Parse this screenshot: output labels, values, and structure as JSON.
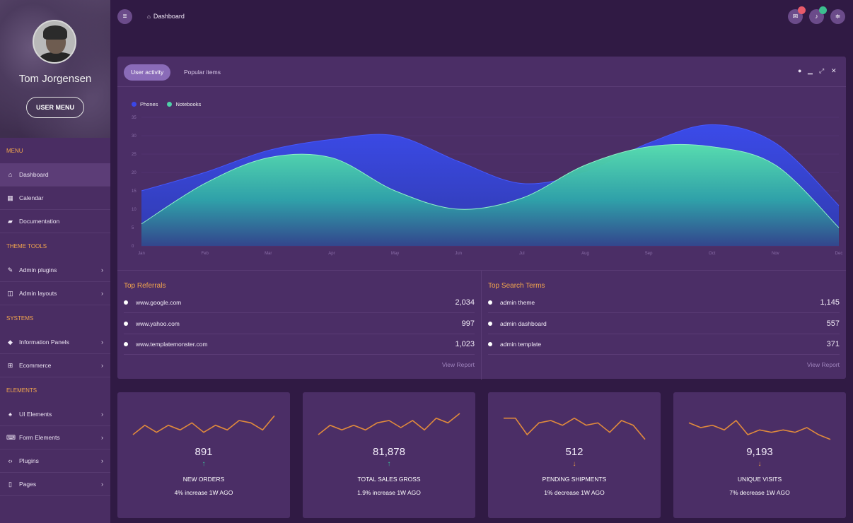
{
  "profile": {
    "name": "Tom Jorgensen",
    "button": "USER MENU"
  },
  "sidebar": {
    "sections": [
      {
        "title": "MENU",
        "items": [
          {
            "label": "Dashboard",
            "icon": "home-icon",
            "glyph": "⌂",
            "arrow": false,
            "active": true
          },
          {
            "label": "Calendar",
            "icon": "calendar-icon",
            "glyph": "▦",
            "arrow": false
          },
          {
            "label": "Documentation",
            "icon": "book-icon",
            "glyph": "▰",
            "arrow": false
          }
        ]
      },
      {
        "title": "THEME TOOLS",
        "items": [
          {
            "label": "Admin plugins",
            "icon": "pencil-icon",
            "glyph": "✎",
            "arrow": true
          },
          {
            "label": "Admin layouts",
            "icon": "columns-icon",
            "glyph": "◫",
            "arrow": true
          }
        ]
      },
      {
        "title": "SYSTEMS",
        "items": [
          {
            "label": "Information Panels",
            "icon": "diamond-icon",
            "glyph": "◆",
            "arrow": true
          },
          {
            "label": "Ecommerce",
            "icon": "cart-icon",
            "glyph": "⊞",
            "arrow": true
          }
        ]
      },
      {
        "title": "ELEMENTS",
        "items": [
          {
            "label": "UI Elements",
            "icon": "bell-icon",
            "glyph": "♠",
            "arrow": true
          },
          {
            "label": "Form Elements",
            "icon": "keyboard-icon",
            "glyph": "⌨",
            "arrow": true
          },
          {
            "label": "Plugins",
            "icon": "code-icon",
            "glyph": "‹›",
            "arrow": true
          },
          {
            "label": "Pages",
            "icon": "file-icon",
            "glyph": "▯",
            "arrow": true
          }
        ]
      }
    ]
  },
  "topbar": {
    "breadcrumb": "Dashboard"
  },
  "panel": {
    "tabs": [
      "User activity",
      "Popular items"
    ],
    "controls": [
      "drop-icon",
      "minimize-icon",
      "expand-icon",
      "close-icon"
    ]
  },
  "colors": {
    "phones": "#3a46e8",
    "notebooks": "#4fd1a8",
    "accent": "#f3a64d",
    "background": "#301a44",
    "panel": "#4b2e66"
  },
  "chart_data": {
    "type": "area",
    "x": [
      "Jan",
      "Feb",
      "Mar",
      "Apr",
      "May",
      "Jun",
      "Jul",
      "Aug",
      "Sep",
      "Oct",
      "Nov",
      "Dec"
    ],
    "ylim": [
      0,
      35
    ],
    "yticks": [
      0,
      5,
      10,
      15,
      20,
      25,
      30,
      35
    ],
    "legend": "top-left",
    "series": [
      {
        "name": "Phones",
        "color": "#3a46e8",
        "values": [
          15,
          20,
          26,
          29,
          30,
          23,
          17,
          20,
          28,
          33,
          28,
          11
        ]
      },
      {
        "name": "Notebooks",
        "color": "#4fd1a8",
        "values": [
          6,
          17,
          24,
          24,
          15,
          10,
          13,
          22,
          27,
          27,
          22,
          5
        ]
      }
    ]
  },
  "referrals": {
    "title": "Top Referrals",
    "rows": [
      {
        "label": "www.google.com",
        "value": "2,034"
      },
      {
        "label": "www.yahoo.com",
        "value": "997"
      },
      {
        "label": "www.templatemonster.com",
        "value": "1,023"
      }
    ],
    "link": "View Report"
  },
  "search_terms": {
    "title": "Top Search Terms",
    "rows": [
      {
        "label": "admin theme",
        "value": "1,145"
      },
      {
        "label": "admin dashboard",
        "value": "557"
      },
      {
        "label": "admin template",
        "value": "371"
      }
    ],
    "link": "View Report"
  },
  "stats": [
    {
      "value": "891",
      "label": "NEW ORDERS",
      "sub": "4% increase 1W AGO",
      "trend": "up",
      "arrow": "↑",
      "spark": [
        3,
        7,
        4,
        7,
        5,
        8,
        4,
        7,
        5,
        9,
        8,
        5,
        11
      ]
    },
    {
      "value": "81,878",
      "label": "TOTAL SALES GROSS",
      "sub": "1.9% increase 1W AGO",
      "trend": "up",
      "arrow": "↑",
      "spark": [
        3,
        7,
        5,
        7,
        5,
        8,
        9,
        6,
        9,
        5,
        10,
        8,
        12
      ]
    },
    {
      "value": "512",
      "label": "PENDING SHIPMENTS",
      "sub": "1% decrease 1W AGO",
      "trend": "down",
      "arrow": "↓",
      "spark": [
        10,
        10,
        3,
        8,
        9,
        7,
        10,
        7,
        8,
        4,
        9,
        7,
        1
      ]
    },
    {
      "value": "9,193",
      "label": "UNIQUE VISITS",
      "sub": "7% decrease 1W AGO",
      "trend": "down",
      "arrow": "↓",
      "spark": [
        8,
        6,
        7,
        5,
        9,
        3,
        5,
        4,
        5,
        4,
        6,
        3,
        1
      ]
    }
  ]
}
